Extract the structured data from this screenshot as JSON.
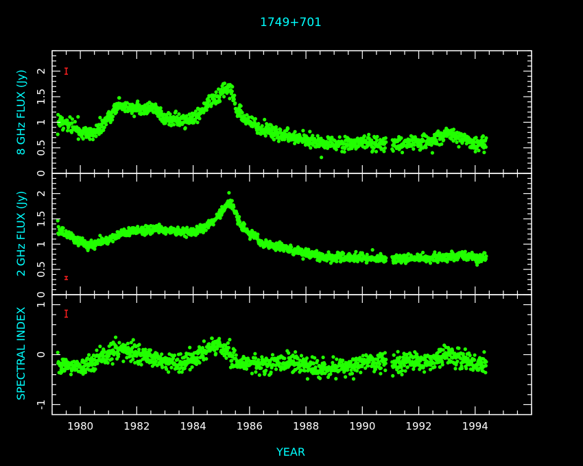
{
  "chart_data": {
    "type": "scatter",
    "title": "1749+701",
    "xlabel": "YEAR",
    "xlim": [
      1979,
      1996
    ],
    "x_ticks": [
      "1980",
      "1982",
      "1984",
      "1986",
      "1988",
      "1990",
      "1992",
      "1994"
    ],
    "point_color": "#22ff00",
    "errorbar_color": "#ff2020",
    "text_color": "#00ffff",
    "panels": [
      {
        "ylabel": "8 GHz FLUX (Jy)",
        "ylim": [
          0,
          2.4
        ],
        "y_ticks": [
          "0",
          "0.5",
          "1",
          "1.5",
          "2"
        ],
        "errorbar": {
          "x": 1979.5,
          "y": 2.0,
          "err": 0.06
        },
        "trend": [
          [
            1979.2,
            1.05
          ],
          [
            1979.6,
            0.95
          ],
          [
            1980.0,
            0.82
          ],
          [
            1980.4,
            0.78
          ],
          [
            1980.8,
            0.9
          ],
          [
            1981.0,
            1.1
          ],
          [
            1981.3,
            1.3
          ],
          [
            1981.8,
            1.28
          ],
          [
            1982.2,
            1.25
          ],
          [
            1982.6,
            1.3
          ],
          [
            1983.0,
            1.08
          ],
          [
            1983.5,
            1.05
          ],
          [
            1984.0,
            1.05
          ],
          [
            1984.5,
            1.35
          ],
          [
            1985.0,
            1.55
          ],
          [
            1985.3,
            1.72
          ],
          [
            1985.5,
            1.35
          ],
          [
            1985.8,
            1.05
          ],
          [
            1986.5,
            0.88
          ],
          [
            1987.5,
            0.72
          ],
          [
            1988.5,
            0.58
          ],
          [
            1989.5,
            0.56
          ],
          [
            1990.2,
            0.62
          ],
          [
            1990.8,
            0.55
          ],
          [
            1991.5,
            0.6
          ],
          [
            1992.5,
            0.62
          ],
          [
            1993.0,
            0.78
          ],
          [
            1993.5,
            0.7
          ],
          [
            1994.0,
            0.58
          ],
          [
            1994.4,
            0.62
          ]
        ],
        "spread": 0.07,
        "seed": 11
      },
      {
        "ylabel": "2 GHz FLUX (Jy)",
        "ylim": [
          0,
          2.4
        ],
        "y_ticks": [
          "0",
          "0.5",
          "1",
          "1.5",
          "2"
        ],
        "errorbar": {
          "x": 1979.5,
          "y": 0.33,
          "err": 0.03
        },
        "trend": [
          [
            1979.2,
            1.28
          ],
          [
            1979.8,
            1.1
          ],
          [
            1980.4,
            0.98
          ],
          [
            1981.0,
            1.1
          ],
          [
            1981.5,
            1.22
          ],
          [
            1982.5,
            1.3
          ],
          [
            1983.5,
            1.25
          ],
          [
            1984.0,
            1.25
          ],
          [
            1984.6,
            1.4
          ],
          [
            1985.0,
            1.65
          ],
          [
            1985.3,
            1.9
          ],
          [
            1985.6,
            1.45
          ],
          [
            1986.0,
            1.2
          ],
          [
            1986.5,
            1.02
          ],
          [
            1987.5,
            0.88
          ],
          [
            1988.5,
            0.76
          ],
          [
            1989.5,
            0.72
          ],
          [
            1990.5,
            0.71
          ],
          [
            1991.5,
            0.71
          ],
          [
            1992.5,
            0.74
          ],
          [
            1993.5,
            0.77
          ],
          [
            1994.4,
            0.72
          ]
        ],
        "spread": 0.045,
        "seed": 23
      },
      {
        "ylabel": "SPECTRAL INDEX",
        "ylim": [
          -1.2,
          1.2
        ],
        "y_ticks": [
          "-1",
          "0",
          "1"
        ],
        "errorbar": {
          "x": 1979.5,
          "y": 0.82,
          "err": 0.07
        },
        "trend": [
          [
            1979.2,
            -0.2
          ],
          [
            1980.0,
            -0.25
          ],
          [
            1980.5,
            -0.15
          ],
          [
            1981.2,
            0.1
          ],
          [
            1981.8,
            0.05
          ],
          [
            1982.5,
            -0.05
          ],
          [
            1983.0,
            -0.15
          ],
          [
            1983.5,
            -0.2
          ],
          [
            1984.0,
            -0.1
          ],
          [
            1984.7,
            0.2
          ],
          [
            1985.1,
            0.1
          ],
          [
            1985.5,
            -0.15
          ],
          [
            1986.5,
            -0.2
          ],
          [
            1987.5,
            -0.15
          ],
          [
            1988.5,
            -0.3
          ],
          [
            1989.5,
            -0.25
          ],
          [
            1990.2,
            -0.12
          ],
          [
            1990.8,
            -0.2
          ],
          [
            1991.5,
            -0.15
          ],
          [
            1992.5,
            -0.15
          ],
          [
            1993.0,
            0.02
          ],
          [
            1993.5,
            -0.05
          ],
          [
            1994.0,
            -0.2
          ],
          [
            1994.4,
            -0.15
          ]
        ],
        "spread": 0.09,
        "seed": 37
      }
    ]
  }
}
